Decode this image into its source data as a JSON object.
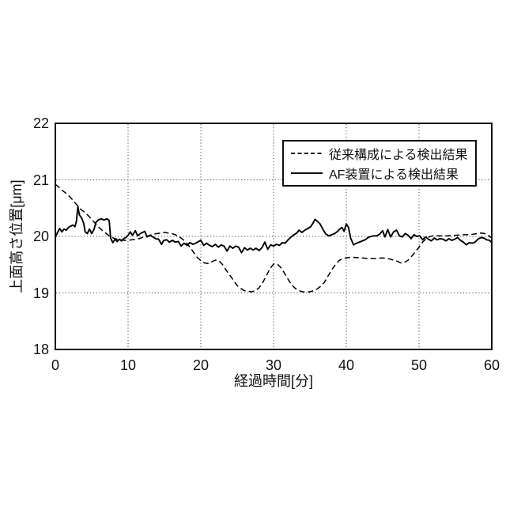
{
  "chart_data": {
    "type": "line",
    "title": "",
    "xlabel": "経過時間[分]",
    "ylabel": "上面高さ位置[μm]",
    "xlim": [
      0,
      60
    ],
    "ylim": [
      18,
      22
    ],
    "xticks": [
      0,
      10,
      20,
      30,
      40,
      50,
      60
    ],
    "yticks": [
      22,
      21,
      20,
      19,
      18
    ],
    "xgrid": [
      10,
      20,
      30,
      40,
      50
    ],
    "ygrid": [
      19,
      20,
      21
    ],
    "grid": "dotted",
    "legend_position": "upper right",
    "series": [
      {
        "name": "従来構成による検出結果",
        "line": "dashed",
        "points": [
          [
            0,
            20.92
          ],
          [
            0.5,
            20.87
          ],
          [
            1,
            20.81
          ],
          [
            1.5,
            20.76
          ],
          [
            2,
            20.7
          ],
          [
            2.5,
            20.63
          ],
          [
            3,
            20.55
          ],
          [
            3.5,
            20.48
          ],
          [
            4,
            20.43
          ],
          [
            4.5,
            20.37
          ],
          [
            5,
            20.3
          ],
          [
            5.5,
            20.23
          ],
          [
            6,
            20.16
          ],
          [
            6.5,
            20.1
          ],
          [
            7,
            20.05
          ],
          [
            7.5,
            20.0
          ],
          [
            8,
            19.97
          ],
          [
            8.5,
            19.95
          ],
          [
            9,
            19.94
          ],
          [
            9.5,
            19.93
          ],
          [
            10,
            19.93
          ],
          [
            10.5,
            19.94
          ],
          [
            11,
            19.95
          ],
          [
            11.5,
            19.96
          ],
          [
            12,
            19.98
          ],
          [
            12.5,
            20.0
          ],
          [
            13,
            20.02
          ],
          [
            13.5,
            20.04
          ],
          [
            14,
            20.05
          ],
          [
            14.5,
            20.06
          ],
          [
            15,
            20.07
          ],
          [
            15.5,
            20.06
          ],
          [
            16,
            20.05
          ],
          [
            16.5,
            20.03
          ],
          [
            17,
            20.0
          ],
          [
            17.5,
            19.95
          ],
          [
            18,
            19.89
          ],
          [
            18.5,
            19.81
          ],
          [
            19,
            19.72
          ],
          [
            19.5,
            19.63
          ],
          [
            20,
            19.57
          ],
          [
            20.5,
            19.53
          ],
          [
            21,
            19.52
          ],
          [
            21.5,
            19.55
          ],
          [
            22,
            19.58
          ],
          [
            22.5,
            19.57
          ],
          [
            23,
            19.5
          ],
          [
            23.5,
            19.4
          ],
          [
            24,
            19.31
          ],
          [
            24.5,
            19.22
          ],
          [
            25,
            19.13
          ],
          [
            25.5,
            19.08
          ],
          [
            26,
            19.04
          ],
          [
            26.5,
            19.03
          ],
          [
            27,
            19.02
          ],
          [
            27.5,
            19.04
          ],
          [
            28,
            19.09
          ],
          [
            28.5,
            19.18
          ],
          [
            29,
            19.3
          ],
          [
            29.5,
            19.43
          ],
          [
            30,
            19.51
          ],
          [
            30.5,
            19.51
          ],
          [
            31,
            19.45
          ],
          [
            31.5,
            19.35
          ],
          [
            32,
            19.24
          ],
          [
            32.5,
            19.14
          ],
          [
            33,
            19.08
          ],
          [
            33.5,
            19.04
          ],
          [
            34,
            19.02
          ],
          [
            34.5,
            19.02
          ],
          [
            35,
            19.02
          ],
          [
            35.5,
            19.04
          ],
          [
            36,
            19.07
          ],
          [
            36.5,
            19.12
          ],
          [
            37,
            19.19
          ],
          [
            37.5,
            19.3
          ],
          [
            38,
            19.41
          ],
          [
            38.5,
            19.5
          ],
          [
            39,
            19.57
          ],
          [
            39.5,
            19.61
          ],
          [
            40,
            19.62
          ],
          [
            40.5,
            19.63
          ],
          [
            41,
            19.63
          ],
          [
            42,
            19.62
          ],
          [
            43,
            19.61
          ],
          [
            44,
            19.61
          ],
          [
            45,
            19.62
          ],
          [
            46,
            19.6
          ],
          [
            47,
            19.56
          ],
          [
            47.5,
            19.53
          ],
          [
            48,
            19.54
          ],
          [
            48.5,
            19.58
          ],
          [
            49,
            19.65
          ],
          [
            49.5,
            19.73
          ],
          [
            50,
            19.81
          ],
          [
            50.5,
            19.9
          ],
          [
            51,
            19.96
          ],
          [
            51.5,
            20.0
          ],
          [
            52,
            20.01
          ],
          [
            53,
            20.01
          ],
          [
            54,
            20.01
          ],
          [
            55,
            20.02
          ],
          [
            56,
            20.03
          ],
          [
            57,
            20.03
          ],
          [
            58,
            20.05
          ],
          [
            58.5,
            20.06
          ],
          [
            59,
            20.05
          ],
          [
            59.5,
            20.02
          ],
          [
            60,
            19.97
          ]
        ]
      },
      {
        "name": "AF装置による検出結果",
        "line": "solid",
        "points": [
          [
            0,
            19.99
          ],
          [
            0.3,
            20.07
          ],
          [
            0.6,
            20.14
          ],
          [
            0.9,
            20.08
          ],
          [
            1.2,
            20.13
          ],
          [
            1.5,
            20.11
          ],
          [
            1.8,
            20.16
          ],
          [
            2.1,
            20.18
          ],
          [
            2.4,
            20.2
          ],
          [
            2.7,
            20.17
          ],
          [
            2.9,
            20.27
          ],
          [
            3.1,
            20.53
          ],
          [
            3.3,
            20.38
          ],
          [
            3.6,
            20.33
          ],
          [
            3.9,
            20.23
          ],
          [
            4.1,
            20.08
          ],
          [
            4.4,
            20.05
          ],
          [
            4.7,
            20.13
          ],
          [
            5,
            20.05
          ],
          [
            5.3,
            20.12
          ],
          [
            5.6,
            20.25
          ],
          [
            5.9,
            20.29
          ],
          [
            6.3,
            20.31
          ],
          [
            6.7,
            20.29
          ],
          [
            7.1,
            20.31
          ],
          [
            7.4,
            20.28
          ],
          [
            7.6,
            19.97
          ],
          [
            7.9,
            19.89
          ],
          [
            8.2,
            19.95
          ],
          [
            8.5,
            19.91
          ],
          [
            8.8,
            19.95
          ],
          [
            9.1,
            19.92
          ],
          [
            9.4,
            19.96
          ],
          [
            9.7,
            19.98
          ],
          [
            10,
            20.02
          ],
          [
            10.3,
            20.08
          ],
          [
            10.6,
            20.02
          ],
          [
            11,
            20.1
          ],
          [
            11.3,
            20.01
          ],
          [
            11.7,
            20.05
          ],
          [
            12,
            20.07
          ],
          [
            12.3,
            20.09
          ],
          [
            12.6,
            19.99
          ],
          [
            13,
            20.02
          ],
          [
            13.4,
            19.99
          ],
          [
            13.8,
            19.96
          ],
          [
            14.2,
            19.95
          ],
          [
            14.6,
            19.86
          ],
          [
            14.9,
            19.93
          ],
          [
            15.3,
            19.94
          ],
          [
            15.7,
            19.9
          ],
          [
            16.1,
            19.93
          ],
          [
            16.5,
            19.9
          ],
          [
            16.9,
            19.91
          ],
          [
            17.3,
            19.83
          ],
          [
            17.7,
            19.88
          ],
          [
            18.1,
            19.84
          ],
          [
            18.5,
            19.89
          ],
          [
            18.9,
            19.86
          ],
          [
            19.3,
            19.88
          ],
          [
            19.7,
            19.91
          ],
          [
            20,
            19.93
          ],
          [
            20.4,
            19.84
          ],
          [
            20.8,
            19.88
          ],
          [
            21.2,
            19.84
          ],
          [
            21.6,
            19.82
          ],
          [
            22,
            19.86
          ],
          [
            22.4,
            19.81
          ],
          [
            22.8,
            19.85
          ],
          [
            23.2,
            19.83
          ],
          [
            23.6,
            19.74
          ],
          [
            24,
            19.83
          ],
          [
            24.4,
            19.79
          ],
          [
            24.8,
            19.83
          ],
          [
            25.2,
            19.81
          ],
          [
            25.6,
            19.71
          ],
          [
            26,
            19.8
          ],
          [
            26.4,
            19.76
          ],
          [
            26.8,
            19.79
          ],
          [
            27.2,
            19.76
          ],
          [
            27.6,
            19.79
          ],
          [
            28,
            19.75
          ],
          [
            28.4,
            19.8
          ],
          [
            28.8,
            19.9
          ],
          [
            29.2,
            19.77
          ],
          [
            29.6,
            19.85
          ],
          [
            30,
            19.83
          ],
          [
            30.4,
            19.86
          ],
          [
            30.8,
            19.84
          ],
          [
            31.2,
            19.89
          ],
          [
            31.6,
            19.88
          ],
          [
            32,
            19.94
          ],
          [
            32.4,
            19.99
          ],
          [
            32.8,
            20.03
          ],
          [
            33.2,
            20.06
          ],
          [
            33.5,
            20.11
          ],
          [
            33.9,
            20.07
          ],
          [
            34.3,
            20.11
          ],
          [
            34.7,
            20.14
          ],
          [
            35.1,
            20.17
          ],
          [
            35.4,
            20.23
          ],
          [
            35.7,
            20.3
          ],
          [
            36,
            20.27
          ],
          [
            36.4,
            20.22
          ],
          [
            36.8,
            20.12
          ],
          [
            37.2,
            20.04
          ],
          [
            37.6,
            20.01
          ],
          [
            38,
            20.03
          ],
          [
            38.4,
            20.05
          ],
          [
            38.8,
            20.09
          ],
          [
            39.1,
            20.13
          ],
          [
            39.4,
            20.16
          ],
          [
            39.7,
            20.09
          ],
          [
            40,
            20.22
          ],
          [
            40.3,
            20.16
          ],
          [
            40.6,
            19.97
          ],
          [
            41,
            19.85
          ],
          [
            41.4,
            19.88
          ],
          [
            41.8,
            19.9
          ],
          [
            42.2,
            19.92
          ],
          [
            42.6,
            19.94
          ],
          [
            43,
            19.98
          ],
          [
            43.4,
            20.0
          ],
          [
            43.8,
            20.01
          ],
          [
            44.2,
            20.01
          ],
          [
            44.6,
            20.04
          ],
          [
            45,
            20.1
          ],
          [
            45.3,
            19.99
          ],
          [
            45.7,
            20.12
          ],
          [
            46.1,
            19.99
          ],
          [
            46.5,
            20.08
          ],
          [
            46.9,
            20.11
          ],
          [
            47.3,
            20.01
          ],
          [
            47.7,
            19.99
          ],
          [
            48.1,
            20.05
          ],
          [
            48.5,
            20.02
          ],
          [
            48.9,
            19.96
          ],
          [
            49.3,
            20.03
          ],
          [
            49.7,
            20.0
          ],
          [
            50.1,
            20.01
          ],
          [
            50.5,
            19.94
          ],
          [
            50.9,
            19.99
          ],
          [
            51.3,
            19.95
          ],
          [
            51.7,
            19.92
          ],
          [
            52.1,
            19.97
          ],
          [
            52.5,
            19.94
          ],
          [
            52.9,
            19.96
          ],
          [
            53.3,
            19.95
          ],
          [
            53.7,
            19.92
          ],
          [
            54.1,
            19.96
          ],
          [
            54.5,
            19.93
          ],
          [
            54.9,
            19.95
          ],
          [
            55.3,
            19.98
          ],
          [
            55.7,
            19.93
          ],
          [
            56.1,
            19.9
          ],
          [
            56.5,
            19.85
          ],
          [
            56.9,
            19.89
          ],
          [
            57.3,
            19.88
          ],
          [
            57.7,
            19.9
          ],
          [
            58.1,
            19.95
          ],
          [
            58.5,
            19.98
          ],
          [
            58.9,
            19.97
          ],
          [
            59.3,
            19.94
          ],
          [
            59.7,
            19.93
          ],
          [
            60,
            19.89
          ]
        ]
      }
    ]
  }
}
